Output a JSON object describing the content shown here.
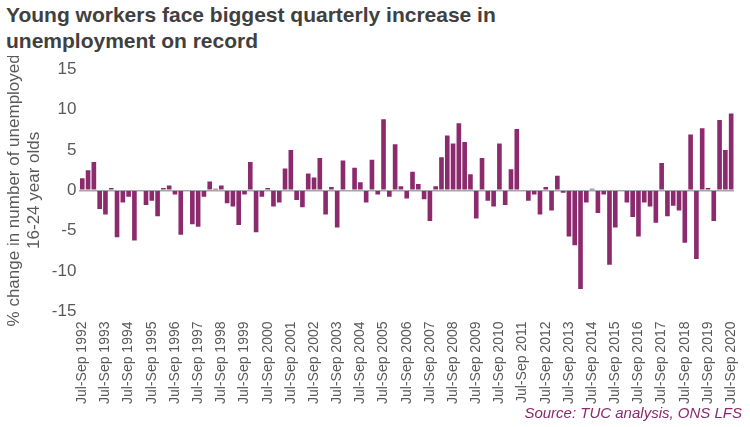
{
  "chart_data": {
    "type": "bar",
    "title": "Young workers face biggest quarterly increase in unemployment on record",
    "y_label": [
      "% change in number of unemployed",
      "16-24 year olds"
    ],
    "source": "Source: TUC analysis, ONS LFS",
    "categories": [
      "Jul-Sep 1992",
      null,
      null,
      null,
      "Jul-Sep 1993",
      null,
      null,
      null,
      "Jul-Sep 1994",
      null,
      null,
      null,
      "Jul-Sep 1995",
      null,
      null,
      null,
      "Jul-Sep 1996",
      null,
      null,
      null,
      "Jul-Sep 1997",
      null,
      null,
      null,
      "Jul-Sep 1998",
      null,
      null,
      null,
      "Jul-Sep 1999",
      null,
      null,
      null,
      "Jul-Sep 2000",
      null,
      null,
      null,
      "Jul-Sep 2001",
      null,
      null,
      null,
      "Jul-Sep 2002",
      null,
      null,
      null,
      "Jul-Sep 2003",
      null,
      null,
      null,
      "Jul-Sep 2004",
      null,
      null,
      null,
      "Jul-Sep 2005",
      null,
      null,
      null,
      "Jul-Sep 2006",
      null,
      null,
      null,
      "Jul-Sep 2007",
      null,
      null,
      null,
      "Jul-Sep 2008",
      null,
      null,
      null,
      "Jul-Sep 2009",
      null,
      null,
      null,
      "Jul-Sep 2010",
      null,
      null,
      null,
      "Jul-Sep 2011",
      null,
      null,
      null,
      "Jul-Sep 2012",
      null,
      null,
      null,
      "Jul-Sep 2013",
      null,
      null,
      null,
      "Jul-Sep 2014",
      null,
      null,
      null,
      "Jul-Sep 2015",
      null,
      null,
      null,
      "Jul-Sep 2016",
      null,
      null,
      null,
      "Jul-Sep 2017",
      null,
      null,
      null,
      "Jul-Sep 2018",
      null,
      null,
      null,
      "Jul-Sep 2019",
      null,
      null,
      null,
      "Jul-Sep 2020"
    ],
    "values": [
      1.5,
      2.5,
      3.5,
      -2.3,
      -3,
      0.3,
      -5.8,
      -1.5,
      -0.8,
      -6.2,
      0,
      -1.8,
      -1.3,
      -3.2,
      0.3,
      0.6,
      -0.5,
      -5.5,
      0,
      -4.2,
      -4.5,
      -0.8,
      1.1,
      0.2,
      0.6,
      -1.6,
      -2,
      -4.3,
      -0.5,
      3.5,
      -5.2,
      -0.8,
      0.3,
      -2,
      -1.5,
      2.7,
      5,
      -1.2,
      -2.1,
      2.1,
      1.6,
      4,
      -3,
      0.4,
      -4.6,
      3.7,
      0,
      2.8,
      1,
      -1.5,
      3.8,
      -0.5,
      8.8,
      -0.8,
      5.7,
      0.5,
      -1,
      2.3,
      0.8,
      -1.1,
      -3.8,
      0.5,
      4.1,
      6.8,
      5.8,
      8.3,
      6,
      2,
      -3.5,
      4,
      -1.3,
      -2,
      5.8,
      -1.8,
      2.6,
      7.6,
      0,
      -1.3,
      -0.5,
      -3,
      0.4,
      -2.5,
      1.8,
      -0.3,
      -5.7,
      -6.8,
      -12.2,
      -1.5,
      0.2,
      -2.8,
      -0.5,
      -9.2,
      -4.6,
      0,
      -1.5,
      -3.3,
      -5.7,
      -1.5,
      -2,
      -4,
      3.4,
      -3.2,
      -1.9,
      -2.5,
      -6.5,
      6.9,
      -8.5,
      7.7,
      0.3,
      -3.8,
      8.7,
      5,
      9.5
    ],
    "color": "#8c2a6e",
    "ylim": [
      -15,
      15
    ],
    "yticks": [
      -15,
      -10,
      -5,
      0,
      5,
      10,
      15
    ],
    "grid": false
  }
}
